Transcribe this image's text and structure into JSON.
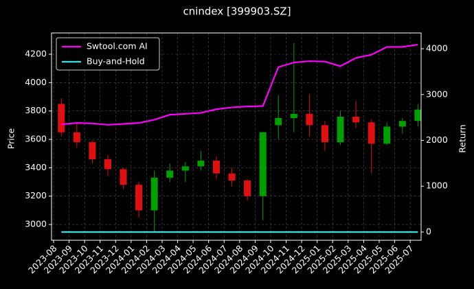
{
  "chart_data": {
    "type": "candlestick",
    "title": "cnindex [399903.SZ]",
    "y_label": "Price",
    "y2_label": "Return",
    "x": [
      "2023-08",
      "2023-09",
      "2023-10",
      "2023-11",
      "2023-12",
      "2024-01",
      "2024-02",
      "2024-03",
      "2024-04",
      "2024-05",
      "2024-06",
      "2024-07",
      "2024-08",
      "2024-09",
      "2024-10",
      "2024-11",
      "2024-12",
      "2025-01",
      "2025-02",
      "2025-03",
      "2025-04",
      "2025-05",
      "2025-06",
      "2025-07"
    ],
    "open": [
      3850,
      3650,
      3580,
      3460,
      3390,
      3280,
      3100,
      3330,
      3380,
      3410,
      3450,
      3360,
      3310,
      3200,
      3700,
      3750,
      3780,
      3700,
      3580,
      3760,
      3720,
      3570,
      3690,
      3730
    ],
    "high": [
      3890,
      3720,
      3590,
      3490,
      3400,
      3300,
      3380,
      3430,
      3440,
      3520,
      3480,
      3400,
      3320,
      3650,
      3910,
      4280,
      3920,
      3730,
      3800,
      3870,
      3740,
      3720,
      3750,
      3850
    ],
    "low": [
      3620,
      3540,
      3430,
      3340,
      3250,
      3050,
      2950,
      3300,
      3300,
      3380,
      3320,
      3270,
      3170,
      3030,
      3600,
      3650,
      3620,
      3520,
      3560,
      3680,
      3360,
      3560,
      3640,
      3690
    ],
    "close": [
      3650,
      3580,
      3460,
      3390,
      3280,
      3100,
      3330,
      3380,
      3410,
      3450,
      3360,
      3310,
      3200,
      3650,
      3750,
      3780,
      3700,
      3580,
      3760,
      3720,
      3570,
      3690,
      3730,
      3810
    ],
    "up_color": "#00a000",
    "down_color": "#e01010",
    "series": [
      {
        "name": "Swtool.com AI",
        "color": "#ff00ff",
        "axis": "y2",
        "values": [
          2350,
          2380,
          2370,
          2340,
          2360,
          2380,
          2450,
          2560,
          2580,
          2600,
          2680,
          2720,
          2740,
          2750,
          3600,
          3700,
          3730,
          3720,
          3620,
          3800,
          3870,
          4040,
          4040,
          4090
        ]
      },
      {
        "name": "Buy-and-Hold",
        "color": "#22e5f0",
        "axis": "y2",
        "values": [
          0,
          0,
          0,
          0,
          0,
          0,
          0,
          0,
          0,
          0,
          0,
          0,
          0,
          0,
          0,
          0,
          0,
          0,
          0,
          0,
          0,
          0,
          0,
          0
        ]
      }
    ],
    "ylim": [
      2889,
      4350
    ],
    "yticks": [
      3000,
      3200,
      3400,
      3600,
      3800,
      4000,
      4200
    ],
    "y2lim": [
      -180,
      4345
    ],
    "y2ticks": [
      0,
      1000,
      2000,
      3000,
      4000
    ],
    "grid": true,
    "legend": "upper left"
  }
}
